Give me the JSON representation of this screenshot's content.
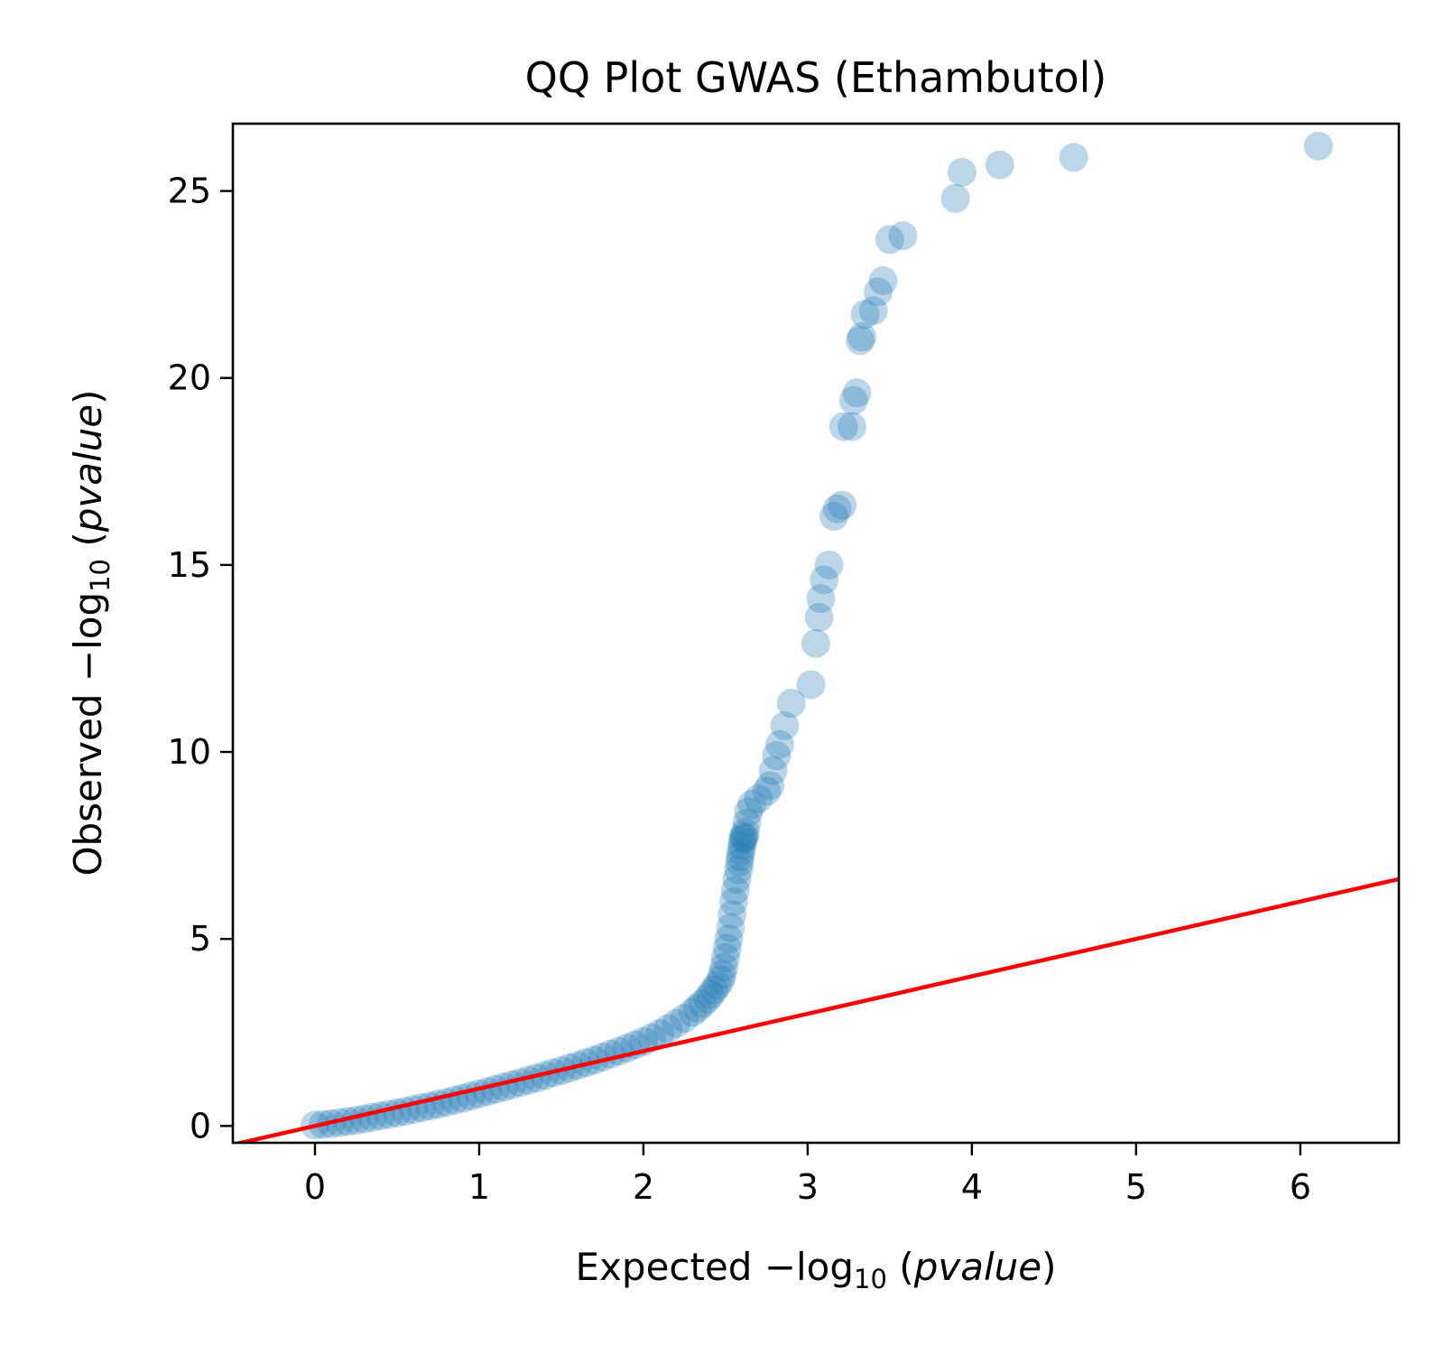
{
  "chart_data": {
    "type": "scatter",
    "title": "QQ Plot GWAS (Ethambutol)",
    "xlabel": {
      "prefix": "Expected −log",
      "sub": "10",
      "var": "pvalue"
    },
    "ylabel": {
      "prefix": "Observed −log",
      "sub": "10",
      "var": "pvalue"
    },
    "xlim": [
      -0.5,
      6.6
    ],
    "ylim": [
      -0.45,
      26.8
    ],
    "xticks": [
      0,
      1,
      2,
      3,
      4,
      5,
      6
    ],
    "yticks": [
      0,
      5,
      10,
      15,
      20,
      25
    ],
    "grid": false,
    "legend": "none",
    "colors": {
      "points": "#1f77b4",
      "reference_line": "#ff0000"
    },
    "point_alpha": 0.3,
    "reference_line": {
      "x": [
        -0.5,
        6.6
      ],
      "y": [
        -0.5,
        6.6
      ]
    },
    "points": {
      "x": [
        0.0,
        0.05,
        0.1,
        0.15,
        0.2,
        0.25,
        0.3,
        0.35,
        0.4,
        0.45,
        0.5,
        0.55,
        0.6,
        0.65,
        0.7,
        0.75,
        0.8,
        0.85,
        0.9,
        0.95,
        1.0,
        1.05,
        1.1,
        1.15,
        1.2,
        1.25,
        1.3,
        1.35,
        1.4,
        1.45,
        1.5,
        1.55,
        1.6,
        1.65,
        1.7,
        1.75,
        1.8,
        1.85,
        1.9,
        1.95,
        2.0,
        2.05,
        2.1,
        2.15,
        2.2,
        2.25,
        2.3,
        2.33,
        2.36,
        2.39,
        2.41,
        2.43,
        2.45,
        2.47,
        2.48,
        2.49,
        2.5,
        2.51,
        2.52,
        2.53,
        2.54,
        2.55,
        2.56,
        2.57,
        2.58,
        2.585,
        2.59,
        2.595,
        2.6,
        2.605,
        2.61,
        2.615,
        2.62,
        2.63,
        2.64,
        2.66,
        2.7,
        2.75,
        2.77,
        2.79,
        2.81,
        2.83,
        2.86,
        2.9,
        3.02,
        3.05,
        3.07,
        3.08,
        3.1,
        3.13,
        3.16,
        3.18,
        3.21,
        3.22,
        3.27,
        3.28,
        3.3,
        3.32,
        3.33,
        3.35,
        3.4,
        3.43,
        3.46,
        3.5,
        3.58,
        3.9,
        3.94,
        4.17,
        4.62,
        6.11
      ],
      "y": [
        0.02,
        0.04,
        0.06,
        0.09,
        0.12,
        0.15,
        0.19,
        0.23,
        0.27,
        0.31,
        0.35,
        0.39,
        0.44,
        0.49,
        0.53,
        0.58,
        0.63,
        0.69,
        0.74,
        0.8,
        0.86,
        0.92,
        0.98,
        1.04,
        1.1,
        1.16,
        1.22,
        1.28,
        1.35,
        1.42,
        1.48,
        1.55,
        1.62,
        1.69,
        1.76,
        1.84,
        1.92,
        2.0,
        2.08,
        2.17,
        2.26,
        2.36,
        2.47,
        2.6,
        2.74,
        2.88,
        3.04,
        3.15,
        3.27,
        3.4,
        3.52,
        3.64,
        3.76,
        3.9,
        4.05,
        4.25,
        4.5,
        4.75,
        5.0,
        5.3,
        5.65,
        6.0,
        6.3,
        6.6,
        6.85,
        7.05,
        7.2,
        7.35,
        7.5,
        7.65,
        7.75,
        7.7,
        7.85,
        8.1,
        8.4,
        8.6,
        8.75,
        8.95,
        9.1,
        9.5,
        9.9,
        10.2,
        10.7,
        11.3,
        11.8,
        12.9,
        13.6,
        14.1,
        14.6,
        15.0,
        16.3,
        16.5,
        16.6,
        18.7,
        18.7,
        19.4,
        19.6,
        21.0,
        21.1,
        21.7,
        21.8,
        22.3,
        22.6,
        23.7,
        23.8,
        24.8,
        25.5,
        25.7,
        25.9,
        26.2
      ]
    }
  }
}
